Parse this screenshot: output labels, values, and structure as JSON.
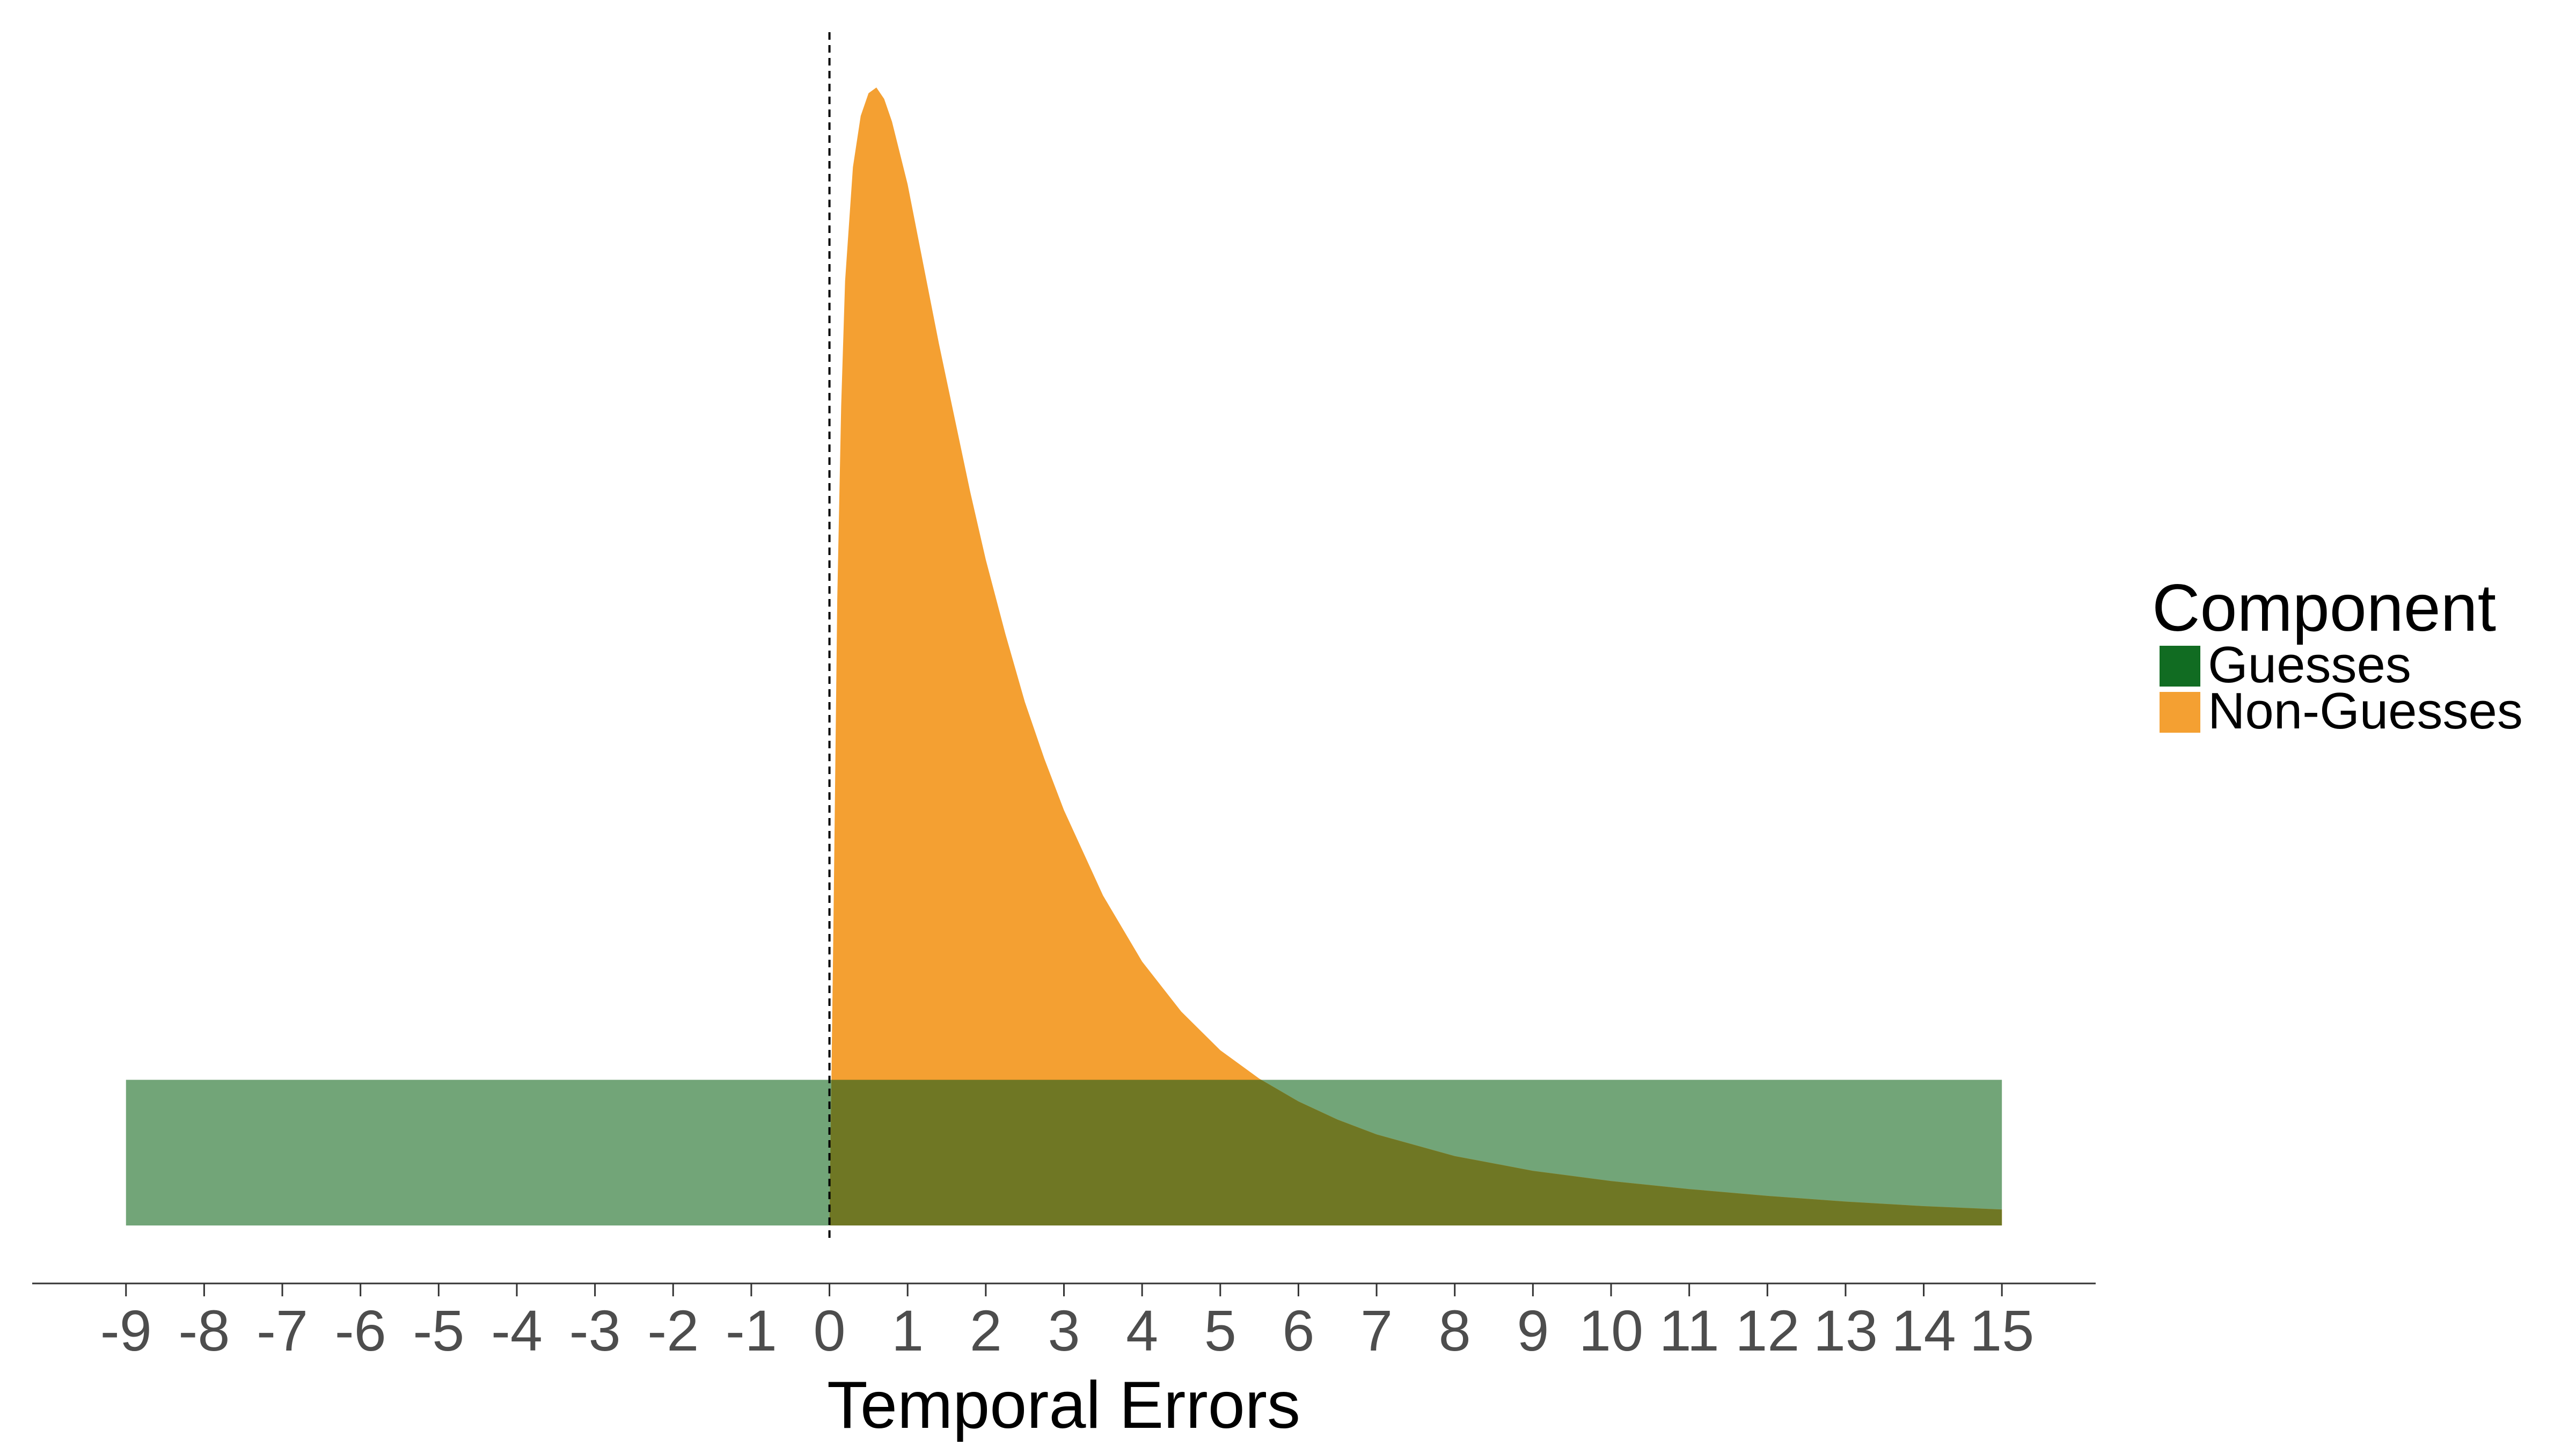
{
  "chart_data": {
    "type": "area",
    "title": "",
    "xlabel": "Temporal Errors",
    "ylabel": "",
    "xlim": [
      -10.2,
      16.2
    ],
    "ylim": [
      0,
      1.0
    ],
    "x_ticks": [
      "-9",
      "-8",
      "-7",
      "-6",
      "-5",
      "-4",
      "-3",
      "-2",
      "-1",
      "0",
      "1",
      "2",
      "3",
      "4",
      "5",
      "6",
      "7",
      "8",
      "9",
      "10",
      "11",
      "12",
      "13",
      "14",
      "15"
    ],
    "reference_line": {
      "x": 0,
      "style": "dashed"
    },
    "grid": false,
    "legend": {
      "title": "Component",
      "position": "right"
    },
    "series": [
      {
        "name": "Guesses",
        "color": "#116C22",
        "fill_color": "#72A578",
        "shape": "uniform",
        "x_range": [
          -9,
          15
        ],
        "density": 0.128
      },
      {
        "name": "Non-Guesses",
        "color": "#F4A032",
        "shape": "right-skewed",
        "points": [
          [
            0.0,
            0.0
          ],
          [
            0.05,
            0.26
          ],
          [
            0.1,
            0.55
          ],
          [
            0.15,
            0.72
          ],
          [
            0.2,
            0.83
          ],
          [
            0.3,
            0.93
          ],
          [
            0.4,
            0.975
          ],
          [
            0.5,
            0.995
          ],
          [
            0.6,
            1.0
          ],
          [
            0.7,
            0.99
          ],
          [
            0.8,
            0.97
          ],
          [
            1.0,
            0.915
          ],
          [
            1.2,
            0.845
          ],
          [
            1.4,
            0.775
          ],
          [
            1.6,
            0.71
          ],
          [
            1.8,
            0.645
          ],
          [
            2.0,
            0.585
          ],
          [
            2.25,
            0.52
          ],
          [
            2.5,
            0.46
          ],
          [
            2.75,
            0.41
          ],
          [
            3.0,
            0.365
          ],
          [
            3.5,
            0.29
          ],
          [
            4.0,
            0.232
          ],
          [
            4.5,
            0.188
          ],
          [
            5.0,
            0.154
          ],
          [
            5.5,
            0.129
          ],
          [
            6.0,
            0.109
          ],
          [
            6.5,
            0.093
          ],
          [
            7.0,
            0.08
          ],
          [
            8.0,
            0.061
          ],
          [
            9.0,
            0.048
          ],
          [
            10.0,
            0.039
          ],
          [
            11.0,
            0.032
          ],
          [
            12.0,
            0.026
          ],
          [
            13.0,
            0.021
          ],
          [
            14.0,
            0.017
          ],
          [
            15.0,
            0.014
          ]
        ]
      }
    ]
  }
}
